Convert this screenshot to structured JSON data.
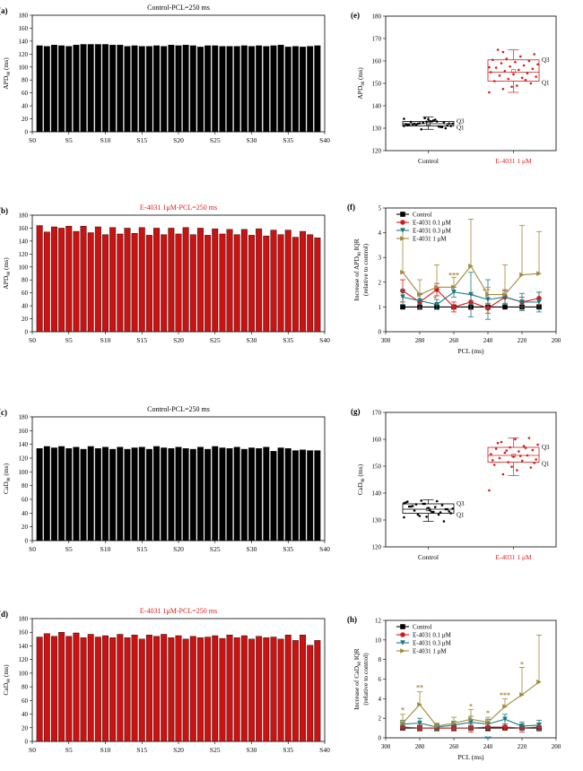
{
  "colors": {
    "black": "#000000",
    "red": "#cc1111",
    "darkred": "#d61a1a",
    "teal": "#1a7a80",
    "olive": "#a08a3a",
    "title_red": "#e02020"
  },
  "panels": {
    "a": {
      "letter": "(a)",
      "title": "Control-PCL=250 ms",
      "ylabel": "APD",
      "ysub": "90",
      "yunit": " (ms)",
      "color": "#000000",
      "title_color": "#000000"
    },
    "b": {
      "letter": "(b)",
      "title": "E-4031 1μM-PCL=250 ms",
      "ylabel": "APD",
      "ysub": "90",
      "yunit": " (ms)",
      "color": "#cc1111",
      "title_color": "#e02020"
    },
    "c": {
      "letter": "(c)",
      "title": "Control-PCL=250 ms",
      "ylabel": "CaD",
      "ysub": "90",
      "yunit": " (ms)",
      "color": "#000000",
      "title_color": "#000000"
    },
    "d": {
      "letter": "(d)",
      "title": "E-4031 1μM-PCL=250 ms",
      "ylabel": "CaD",
      "ysub": "90",
      "yunit": " (ms)",
      "color": "#cc1111",
      "title_color": "#e02020"
    },
    "e": {
      "letter": "(e)",
      "ylabel": "APD",
      "ysub": "90",
      "yunit": " (ms)",
      "q1": "Q1",
      "q3": "Q3",
      "cat_control": "Control",
      "cat_drug": "E-4031 1 μM"
    },
    "f": {
      "letter": "(f)",
      "ylabel": "Increase of APD",
      "ysub": "90",
      "yunit": " IQR",
      "ylabel2": "(relative to control)",
      "xlabel": "PCL (ms)"
    },
    "g": {
      "letter": "(g)",
      "ylabel": "CaD",
      "ysub": "90",
      "yunit": " (ms)",
      "q1": "Q1",
      "q3": "Q3",
      "cat_control": "Control",
      "cat_drug": "E-4031 1 μM"
    },
    "h": {
      "letter": "(h)",
      "ylabel": "Increase of CaD",
      "ysub": "90",
      "yunit": " IQR",
      "ylabel2": "(relative to control)",
      "xlabel": "PCL (ms)"
    }
  },
  "chart_data": [
    {
      "id": "a",
      "type": "bar",
      "categories": [
        "S0",
        "S1",
        "S2",
        "S3",
        "S4",
        "S5",
        "S6",
        "S7",
        "S8",
        "S9",
        "S10",
        "S11",
        "S12",
        "S13",
        "S14",
        "S15",
        "S16",
        "S17",
        "S18",
        "S19",
        "S20",
        "S21",
        "S22",
        "S23",
        "S24",
        "S25",
        "S26",
        "S27",
        "S28",
        "S29",
        "S30",
        "S31",
        "S32",
        "S33",
        "S34",
        "S35",
        "S36",
        "S37",
        "S38"
      ],
      "values": [
        133,
        132,
        134,
        133,
        132,
        134,
        135,
        135,
        135,
        135,
        134,
        134,
        132,
        133,
        132,
        132,
        133,
        132,
        134,
        133,
        134,
        133,
        131,
        133,
        133,
        132,
        132,
        132,
        133,
        132,
        133,
        132,
        133,
        134,
        131,
        132,
        131,
        132,
        133
      ],
      "ylim": [
        0,
        180
      ],
      "yticks": [
        0,
        20,
        40,
        60,
        80,
        100,
        120,
        140,
        160,
        180
      ],
      "xticks": [
        "S0",
        "S5",
        "S10",
        "S15",
        "S20",
        "S25",
        "S30",
        "S35",
        "S40"
      ]
    },
    {
      "id": "b",
      "type": "bar",
      "categories": [
        "S0",
        "S1",
        "S2",
        "S3",
        "S4",
        "S5",
        "S6",
        "S7",
        "S8",
        "S9",
        "S10",
        "S11",
        "S12",
        "S13",
        "S14",
        "S15",
        "S16",
        "S17",
        "S18",
        "S19",
        "S20",
        "S21",
        "S22",
        "S23",
        "S24",
        "S25",
        "S26",
        "S27",
        "S28",
        "S29",
        "S30",
        "S31",
        "S32",
        "S33",
        "S34",
        "S35",
        "S36",
        "S37",
        "S38"
      ],
      "values": [
        164,
        154,
        162,
        160,
        163,
        155,
        163,
        153,
        162,
        150,
        161,
        151,
        160,
        152,
        161,
        149,
        160,
        150,
        160,
        151,
        161,
        150,
        160,
        149,
        159,
        151,
        158,
        150,
        158,
        149,
        159,
        148,
        157,
        150,
        157,
        146,
        155,
        150,
        145
      ],
      "ylim": [
        0,
        180
      ],
      "yticks": [
        0,
        20,
        40,
        60,
        80,
        100,
        120,
        140,
        160,
        180
      ],
      "xticks": [
        "S0",
        "S5",
        "S10",
        "S15",
        "S20",
        "S25",
        "S30",
        "S35",
        "S40"
      ]
    },
    {
      "id": "c",
      "type": "bar",
      "categories": [
        "S0",
        "S1",
        "S2",
        "S3",
        "S4",
        "S5",
        "S6",
        "S7",
        "S8",
        "S9",
        "S10",
        "S11",
        "S12",
        "S13",
        "S14",
        "S15",
        "S16",
        "S17",
        "S18",
        "S19",
        "S20",
        "S21",
        "S22",
        "S23",
        "S24",
        "S25",
        "S26",
        "S27",
        "S28",
        "S29",
        "S30",
        "S31",
        "S32",
        "S33",
        "S34",
        "S35",
        "S36",
        "S37",
        "S38"
      ],
      "values": [
        134,
        137,
        135,
        137,
        134,
        136,
        133,
        137,
        134,
        136,
        133,
        136,
        133,
        135,
        136,
        133,
        137,
        135,
        134,
        136,
        134,
        133,
        136,
        133,
        137,
        135,
        134,
        136,
        133,
        135,
        134,
        136,
        130,
        135,
        134,
        131,
        132,
        131,
        131
      ],
      "ylim": [
        0,
        180
      ],
      "yticks": [
        0,
        20,
        40,
        60,
        80,
        100,
        120,
        140,
        160,
        180
      ],
      "xticks": [
        "S0",
        "S5",
        "S10",
        "S15",
        "S20",
        "S25",
        "S30",
        "S35",
        "S40"
      ]
    },
    {
      "id": "d",
      "type": "bar",
      "categories": [
        "S0",
        "S1",
        "S2",
        "S3",
        "S4",
        "S5",
        "S6",
        "S7",
        "S8",
        "S9",
        "S10",
        "S11",
        "S12",
        "S13",
        "S14",
        "S15",
        "S16",
        "S17",
        "S18",
        "S19",
        "S20",
        "S21",
        "S22",
        "S23",
        "S24",
        "S25",
        "S26",
        "S27",
        "S28",
        "S29",
        "S30",
        "S31",
        "S32",
        "S33",
        "S34",
        "S35",
        "S36",
        "S37",
        "S38"
      ],
      "values": [
        153,
        158,
        154,
        160,
        154,
        159,
        152,
        157,
        153,
        155,
        152,
        157,
        152,
        156,
        150,
        156,
        154,
        157,
        152,
        155,
        150,
        154,
        152,
        153,
        155,
        151,
        156,
        152,
        155,
        150,
        154,
        152,
        153,
        150,
        156,
        148,
        156,
        141,
        148
      ],
      "ylim": [
        0,
        180
      ],
      "yticks": [
        0,
        20,
        40,
        60,
        80,
        100,
        120,
        140,
        160,
        180
      ],
      "xticks": [
        "S0",
        "S5",
        "S10",
        "S15",
        "S20",
        "S25",
        "S30",
        "S35",
        "S40"
      ]
    },
    {
      "id": "e",
      "type": "box",
      "ylim": [
        120,
        180
      ],
      "yticks": [
        120,
        130,
        140,
        150,
        160,
        170,
        180
      ],
      "boxes": [
        {
          "name": "Control",
          "color": "#000000",
          "whisker_low": 129.5,
          "q1": 131,
          "median": 132,
          "mean": 132,
          "q3": 133,
          "whisker_high": 135,
          "points": [
            131,
            132,
            133,
            130,
            131.5,
            132.5,
            133,
            131,
            132,
            134,
            130.5,
            131.8,
            132.2,
            133.5,
            131.2,
            132.8,
            134.5,
            130.8,
            132,
            131.5,
            133.2,
            132.6,
            131.4,
            129.5,
            133.8,
            132.1,
            131.7,
            132.9,
            130.6,
            134.2
          ]
        },
        {
          "name": "E-4031 1 μM",
          "color": "#d61a1a",
          "whisker_low": 146,
          "q1": 151,
          "median": 155,
          "mean": 155.5,
          "q3": 160.5,
          "whisker_high": 165,
          "points": [
            146,
            147.5,
            149,
            150,
            151,
            152,
            152.5,
            153,
            153.5,
            154,
            154.5,
            155,
            155.5,
            156,
            156.5,
            157,
            157.5,
            158,
            158.5,
            159,
            159.5,
            160,
            160.5,
            161,
            162,
            163,
            165,
            148.5,
            151.5,
            157.2,
            164
          ]
        }
      ]
    },
    {
      "id": "f",
      "type": "line",
      "x": [
        290,
        280,
        270,
        260,
        250,
        240,
        230,
        220,
        210
      ],
      "xlim": [
        300,
        200
      ],
      "xticks": [
        300,
        280,
        260,
        240,
        220,
        200
      ],
      "ylim": [
        0,
        5
      ],
      "yticks": [
        0,
        1,
        2,
        3,
        4,
        5
      ],
      "series": [
        {
          "name": "Control",
          "color": "#000000",
          "marker": "square",
          "values": [
            1,
            1,
            1,
            1,
            1,
            1,
            1,
            1,
            1
          ],
          "err": [
            0,
            0,
            0,
            0,
            0,
            0,
            0,
            0,
            0
          ]
        },
        {
          "name": "E-4031 0.1 μM",
          "color": "#d61a1a",
          "marker": "circle",
          "values": [
            1.65,
            1.2,
            1.7,
            1.0,
            1.2,
            0.95,
            1.4,
            1.2,
            1.35
          ],
          "err": [
            0.45,
            0.3,
            0.25,
            0.2,
            0.3,
            0.2,
            0.25,
            0.2,
            0.25
          ]
        },
        {
          "name": "E-4031 0.3 μM",
          "color": "#1a7a80",
          "marker": "triangle-down",
          "values": [
            1.4,
            1.25,
            1.1,
            1.6,
            1.5,
            1.3,
            1.4,
            1.2,
            1.2
          ],
          "err": [
            0.3,
            0.3,
            0.2,
            0.2,
            0.9,
            0.8,
            0.3,
            0.35,
            0.4
          ]
        },
        {
          "name": "E-4031 1 μM",
          "color": "#a08a3a",
          "marker": "triangle-right",
          "values": [
            2.4,
            1.5,
            1.8,
            1.8,
            2.65,
            1.5,
            1.5,
            2.3,
            2.35
          ],
          "err": [
            1.7,
            0.6,
            0.9,
            0.4,
            1.9,
            0.3,
            1.2,
            2.0,
            1.7
          ]
        }
      ],
      "annotations": [
        {
          "x": 260,
          "y": 2.2,
          "text": "***",
          "color": "#a08a3a"
        },
        {
          "x": 241,
          "y": 1.55,
          "text": "**",
          "color": "#a08a3a"
        },
        {
          "x": 271,
          "y": 1.25,
          "text": "*",
          "color": "#a08a3a"
        }
      ]
    },
    {
      "id": "g",
      "type": "box",
      "ylim": [
        120,
        170
      ],
      "yticks": [
        120,
        130,
        140,
        150,
        160,
        170
      ],
      "boxes": [
        {
          "name": "Control",
          "color": "#000000",
          "whisker_low": 129.5,
          "q1": 132.5,
          "median": 134,
          "mean": 134,
          "q3": 136,
          "whisker_high": 137.5,
          "points": [
            131,
            132,
            133,
            134,
            135,
            136,
            137,
            132.5,
            133.5,
            134.5,
            135.5,
            136.5,
            131.5,
            133,
            134,
            135,
            136,
            132,
            134.2,
            135.8,
            133.6,
            129.5,
            136.8,
            137.2,
            134.8,
            133.2,
            135.2,
            131.2,
            132.8,
            136.2
          ]
        },
        {
          "name": "E-4031 1 μM",
          "color": "#d61a1a",
          "whisker_low": 146.5,
          "q1": 151.5,
          "median": 154,
          "mean": 154,
          "q3": 157,
          "whisker_high": 160.5,
          "points": [
            141,
            147,
            148.5,
            149.5,
            150.5,
            151.5,
            152,
            152.5,
            153,
            153.5,
            154,
            154.5,
            155,
            155.5,
            156,
            156.5,
            157,
            157.5,
            158,
            159,
            160,
            160.5,
            152.2,
            155.8,
            153.8,
            151.2,
            158.6,
            149.8,
            156.8
          ]
        }
      ]
    },
    {
      "id": "h",
      "type": "line",
      "x": [
        290,
        280,
        270,
        260,
        250,
        240,
        230,
        220,
        210
      ],
      "xlim": [
        300,
        200
      ],
      "xticks": [
        300,
        280,
        260,
        240,
        220,
        200
      ],
      "ylim": [
        0,
        12
      ],
      "yticks": [
        0,
        2,
        4,
        6,
        8,
        10,
        12
      ],
      "series": [
        {
          "name": "Control",
          "color": "#000000",
          "marker": "square",
          "values": [
            1,
            1,
            1,
            1,
            1,
            1,
            1,
            1,
            1
          ],
          "err": [
            0,
            0,
            0,
            0,
            0,
            0,
            0,
            0,
            0
          ]
        },
        {
          "name": "E-4031 0.1 μM",
          "color": "#d61a1a",
          "marker": "circle",
          "values": [
            1.1,
            1.0,
            1.0,
            1.0,
            1.0,
            1.1,
            1.1,
            1.0,
            1.1
          ],
          "err": [
            0.3,
            0.3,
            0.3,
            0.3,
            0.4,
            0.4,
            0.3,
            0.4,
            0.4
          ]
        },
        {
          "name": "E-4031 0.3 μM",
          "color": "#1a7a80",
          "marker": "triangle-down",
          "values": [
            1.4,
            1.5,
            1.1,
            1.3,
            1.6,
            1.4,
            1.9,
            1.2,
            1.3
          ],
          "err": [
            0.4,
            0.5,
            0.3,
            0.4,
            0.6,
            0.5,
            0.5,
            0.4,
            0.5
          ]
        },
        {
          "name": "E-4031 1 μM",
          "color": "#a08a3a",
          "marker": "triangle-right",
          "values": [
            1.5,
            3.4,
            1.2,
            1.5,
            1.9,
            1.6,
            3.2,
            4.4,
            5.7
          ],
          "err": [
            0.9,
            1.3,
            0.3,
            0.6,
            1.0,
            0.5,
            0.8,
            2.8,
            4.8
          ]
        }
      ],
      "annotations": [
        {
          "x": 290,
          "y": 2.6,
          "text": "*",
          "color": "#a08a3a"
        },
        {
          "x": 280,
          "y": 4.9,
          "text": "**",
          "color": "#a08a3a"
        },
        {
          "x": 250,
          "y": 3.0,
          "text": "*",
          "color": "#a08a3a"
        },
        {
          "x": 240,
          "y": 2.3,
          "text": "*",
          "color": "#a08a3a"
        },
        {
          "x": 240,
          "y": -0.3,
          "text": "**",
          "color": "#1a7a80"
        },
        {
          "x": 230,
          "y": 4.1,
          "text": "***",
          "color": "#a08a3a"
        },
        {
          "x": 220,
          "y": 7.3,
          "text": "*",
          "color": "#a08a3a"
        }
      ]
    }
  ]
}
